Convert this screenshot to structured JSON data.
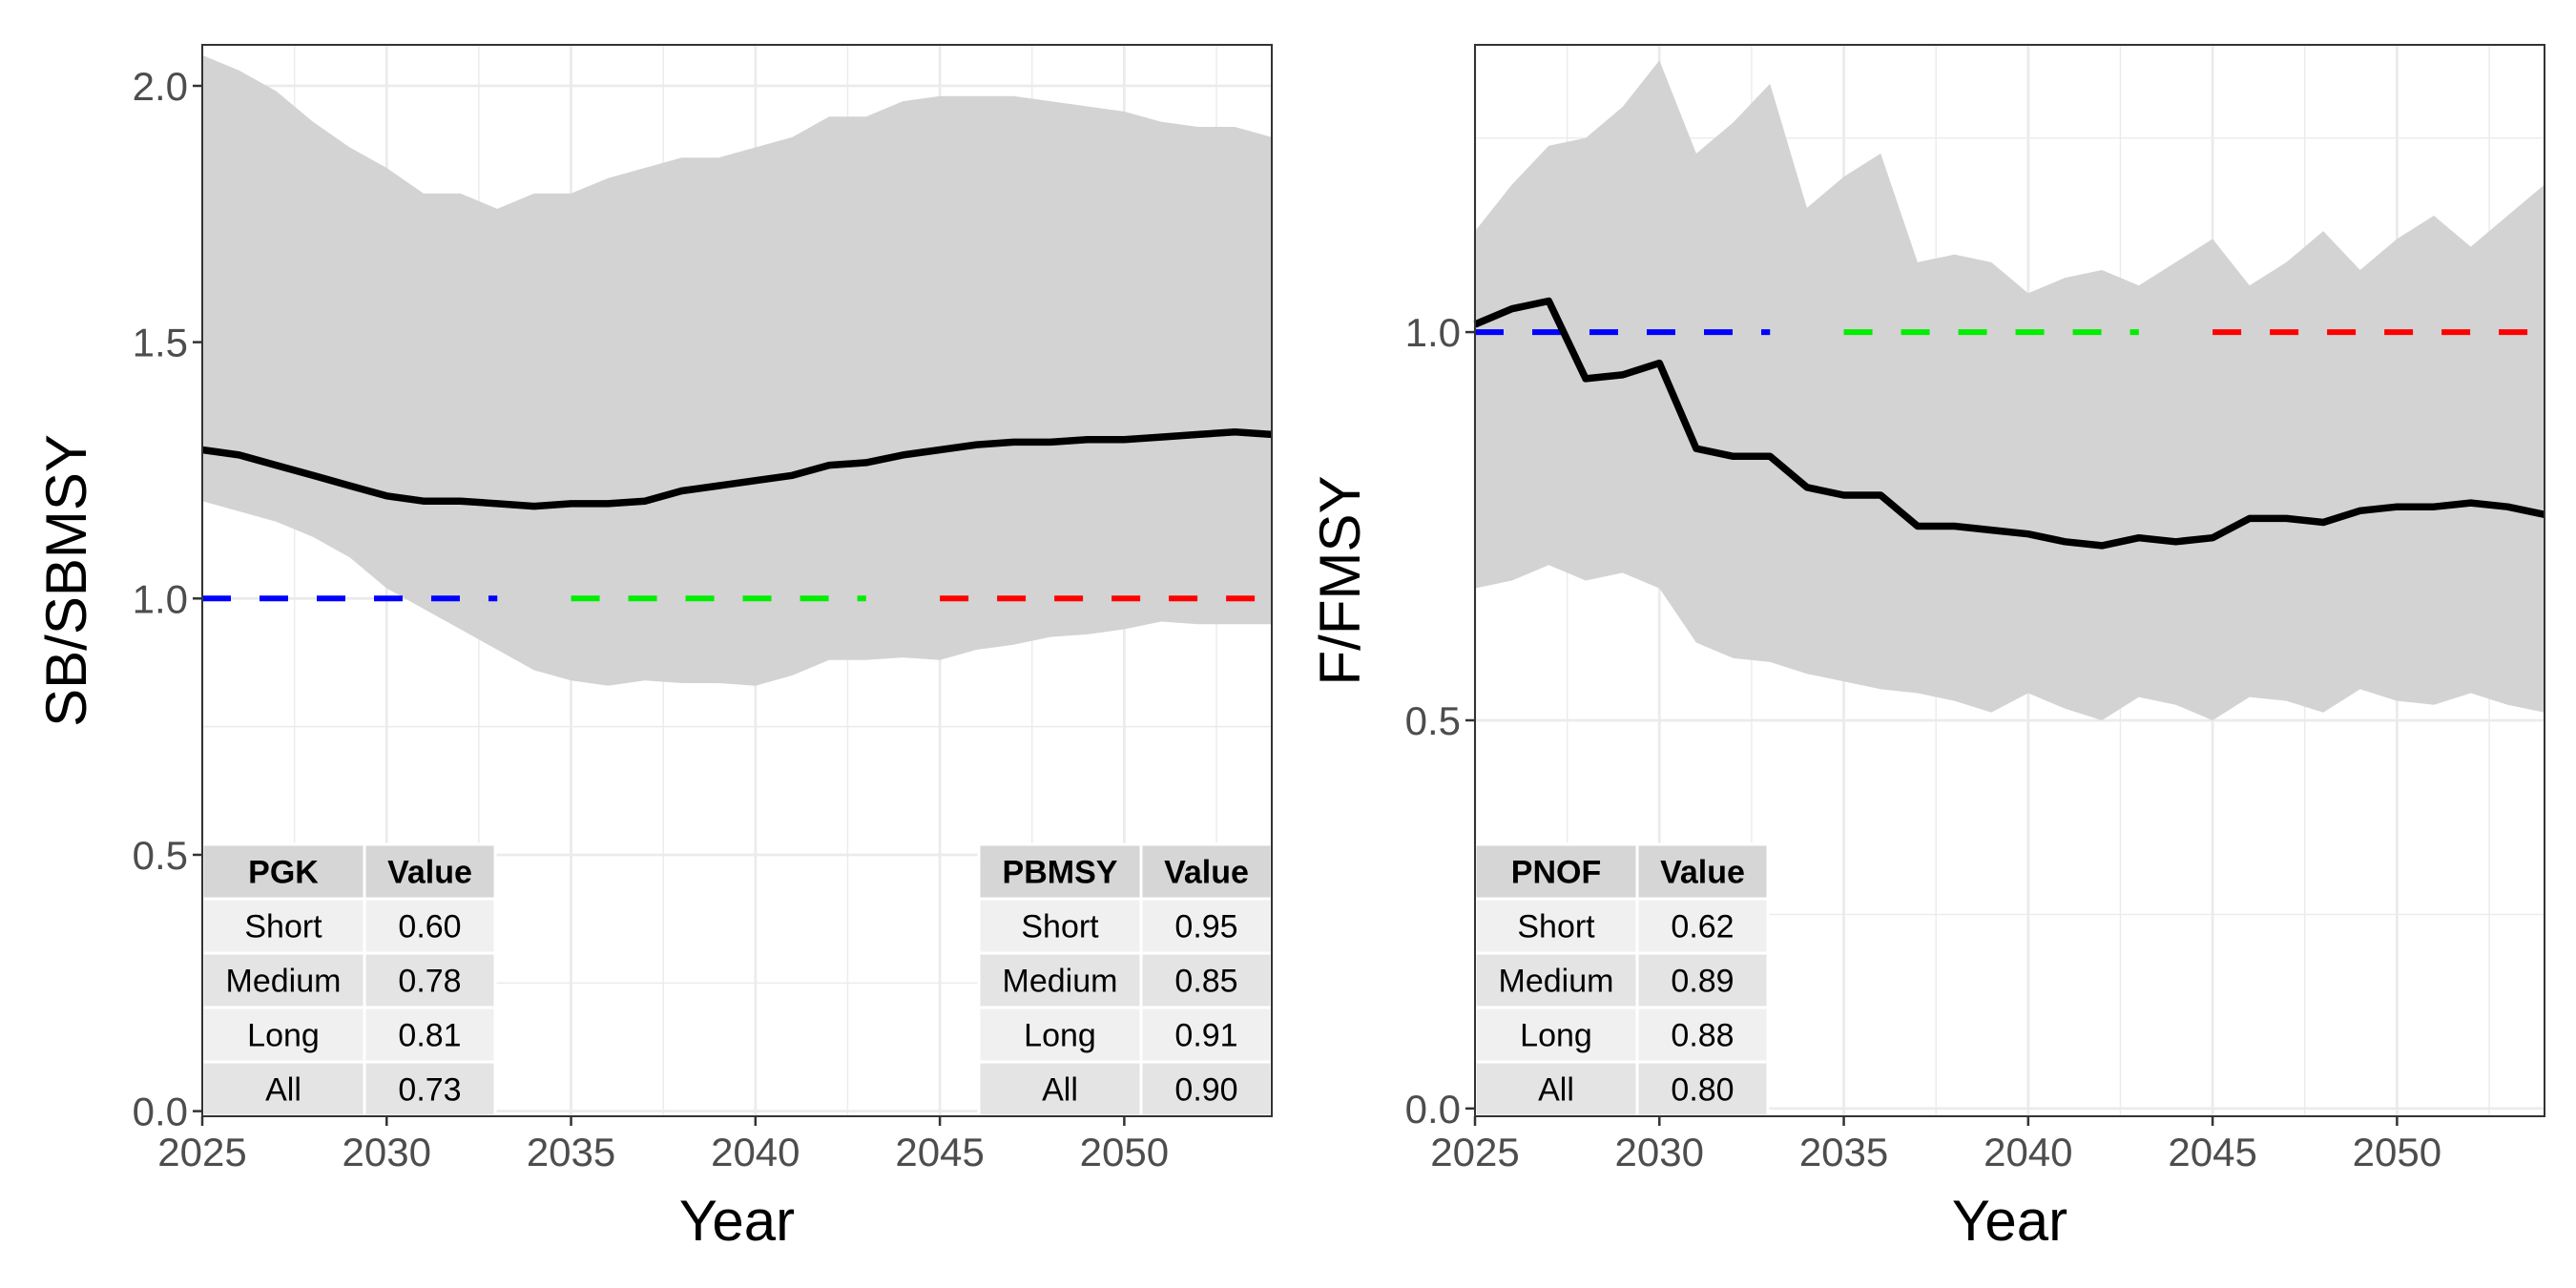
{
  "chart_data": [
    {
      "type": "line",
      "xlabel": "Year",
      "ylabel": "SB/SBMSY",
      "xlim": [
        2025,
        2054
      ],
      "ylim": [
        -0.01,
        2.08
      ],
      "xticks": [
        2025,
        2030,
        2035,
        2040,
        2045,
        2050
      ],
      "xtick_labels": [
        "2025",
        "2030",
        "2035",
        "2040",
        "2045",
        "2050"
      ],
      "yticks": [
        0,
        0.5,
        1,
        1.5,
        2
      ],
      "ytick_labels": [
        "0.0",
        "0.5",
        "1.0",
        "1.5",
        "2.0"
      ],
      "grid": true,
      "x": [
        2025,
        2026,
        2027,
        2028,
        2029,
        2030,
        2031,
        2032,
        2033,
        2034,
        2035,
        2036,
        2037,
        2038,
        2039,
        2040,
        2041,
        2042,
        2043,
        2044,
        2045,
        2046,
        2047,
        2048,
        2049,
        2050,
        2051,
        2052,
        2053,
        2054
      ],
      "median": [
        1.29,
        1.28,
        1.26,
        1.24,
        1.22,
        1.2,
        1.19,
        1.19,
        1.185,
        1.18,
        1.185,
        1.185,
        1.19,
        1.21,
        1.22,
        1.23,
        1.24,
        1.26,
        1.265,
        1.28,
        1.29,
        1.3,
        1.305,
        1.305,
        1.31,
        1.31,
        1.315,
        1.32,
        1.325,
        1.32
      ],
      "upper": [
        2.06,
        2.03,
        1.99,
        1.93,
        1.88,
        1.84,
        1.79,
        1.79,
        1.76,
        1.79,
        1.79,
        1.82,
        1.84,
        1.86,
        1.86,
        1.88,
        1.9,
        1.94,
        1.94,
        1.97,
        1.98,
        1.98,
        1.98,
        1.97,
        1.96,
        1.95,
        1.93,
        1.92,
        1.92,
        1.9
      ],
      "lower": [
        1.19,
        1.17,
        1.15,
        1.12,
        1.08,
        1.02,
        0.98,
        0.94,
        0.9,
        0.86,
        0.84,
        0.83,
        0.84,
        0.835,
        0.835,
        0.83,
        0.85,
        0.88,
        0.88,
        0.885,
        0.88,
        0.9,
        0.91,
        0.925,
        0.93,
        0.94,
        0.955,
        0.95,
        0.95,
        0.95
      ],
      "reference_segments": [
        {
          "x0": 2025,
          "x1": 2033,
          "y": 1.0,
          "color": "#0000ff"
        },
        {
          "x0": 2035,
          "x1": 2043,
          "y": 1.0,
          "color": "#00ee00"
        },
        {
          "x0": 2045,
          "x1": 2054,
          "y": 1.0,
          "color": "#ff0000"
        }
      ],
      "tables": [
        {
          "position": "bottom-left",
          "headers": [
            "PGK",
            "Value"
          ],
          "rows": [
            [
              "Short",
              "0.60"
            ],
            [
              "Medium",
              "0.78"
            ],
            [
              "Long",
              "0.81"
            ],
            [
              "All",
              "0.73"
            ]
          ]
        },
        {
          "position": "bottom-right",
          "headers": [
            "PBMSY",
            "Value"
          ],
          "rows": [
            [
              "Short",
              "0.95"
            ],
            [
              "Medium",
              "0.85"
            ],
            [
              "Long",
              "0.91"
            ],
            [
              "All",
              "0.90"
            ]
          ]
        }
      ],
      "colors": {
        "band": "#d3d3d3",
        "median": "#000000",
        "grid": "#ebebeb"
      }
    },
    {
      "type": "line",
      "xlabel": "Year",
      "ylabel": "F/FMSY",
      "xlim": [
        2025,
        2054
      ],
      "ylim": [
        -0.01,
        1.37
      ],
      "xticks": [
        2025,
        2030,
        2035,
        2040,
        2045,
        2050
      ],
      "xtick_labels": [
        "2025",
        "2030",
        "2035",
        "2040",
        "2045",
        "2050"
      ],
      "yticks": [
        0,
        0.5,
        1
      ],
      "ytick_labels": [
        "0.0",
        "0.5",
        "1.0"
      ],
      "grid": true,
      "x": [
        2025,
        2026,
        2027,
        2028,
        2029,
        2030,
        2031,
        2032,
        2033,
        2034,
        2035,
        2036,
        2037,
        2038,
        2039,
        2040,
        2041,
        2042,
        2043,
        2044,
        2045,
        2046,
        2047,
        2048,
        2049,
        2050,
        2051,
        2052,
        2053,
        2054
      ],
      "median": [
        1.01,
        1.03,
        1.04,
        0.94,
        0.945,
        0.96,
        0.85,
        0.84,
        0.84,
        0.8,
        0.79,
        0.79,
        0.75,
        0.75,
        0.745,
        0.74,
        0.73,
        0.725,
        0.735,
        0.73,
        0.735,
        0.76,
        0.76,
        0.755,
        0.77,
        0.775,
        0.775,
        0.78,
        0.775,
        0.765
      ],
      "upper": [
        1.13,
        1.19,
        1.24,
        1.25,
        1.29,
        1.35,
        1.23,
        1.27,
        1.32,
        1.16,
        1.2,
        1.23,
        1.09,
        1.1,
        1.09,
        1.05,
        1.07,
        1.08,
        1.06,
        1.09,
        1.12,
        1.06,
        1.09,
        1.13,
        1.08,
        1.12,
        1.15,
        1.11,
        1.15,
        1.19
      ],
      "lower": [
        0.67,
        0.68,
        0.7,
        0.68,
        0.69,
        0.67,
        0.6,
        0.58,
        0.575,
        0.56,
        0.55,
        0.54,
        0.535,
        0.525,
        0.51,
        0.535,
        0.515,
        0.5,
        0.53,
        0.52,
        0.5,
        0.53,
        0.525,
        0.51,
        0.54,
        0.525,
        0.52,
        0.535,
        0.52,
        0.51
      ],
      "reference_segments": [
        {
          "x0": 2025,
          "x1": 2033,
          "y": 1.0,
          "color": "#0000ff"
        },
        {
          "x0": 2035,
          "x1": 2043,
          "y": 1.0,
          "color": "#00ee00"
        },
        {
          "x0": 2045,
          "x1": 2054,
          "y": 1.0,
          "color": "#ff0000"
        }
      ],
      "tables": [
        {
          "position": "bottom-left",
          "headers": [
            "PNOF",
            "Value"
          ],
          "rows": [
            [
              "Short",
              "0.62"
            ],
            [
              "Medium",
              "0.89"
            ],
            [
              "Long",
              "0.88"
            ],
            [
              "All",
              "0.80"
            ]
          ]
        }
      ],
      "colors": {
        "band": "#d3d3d3",
        "median": "#000000",
        "grid": "#ebebeb"
      }
    }
  ]
}
